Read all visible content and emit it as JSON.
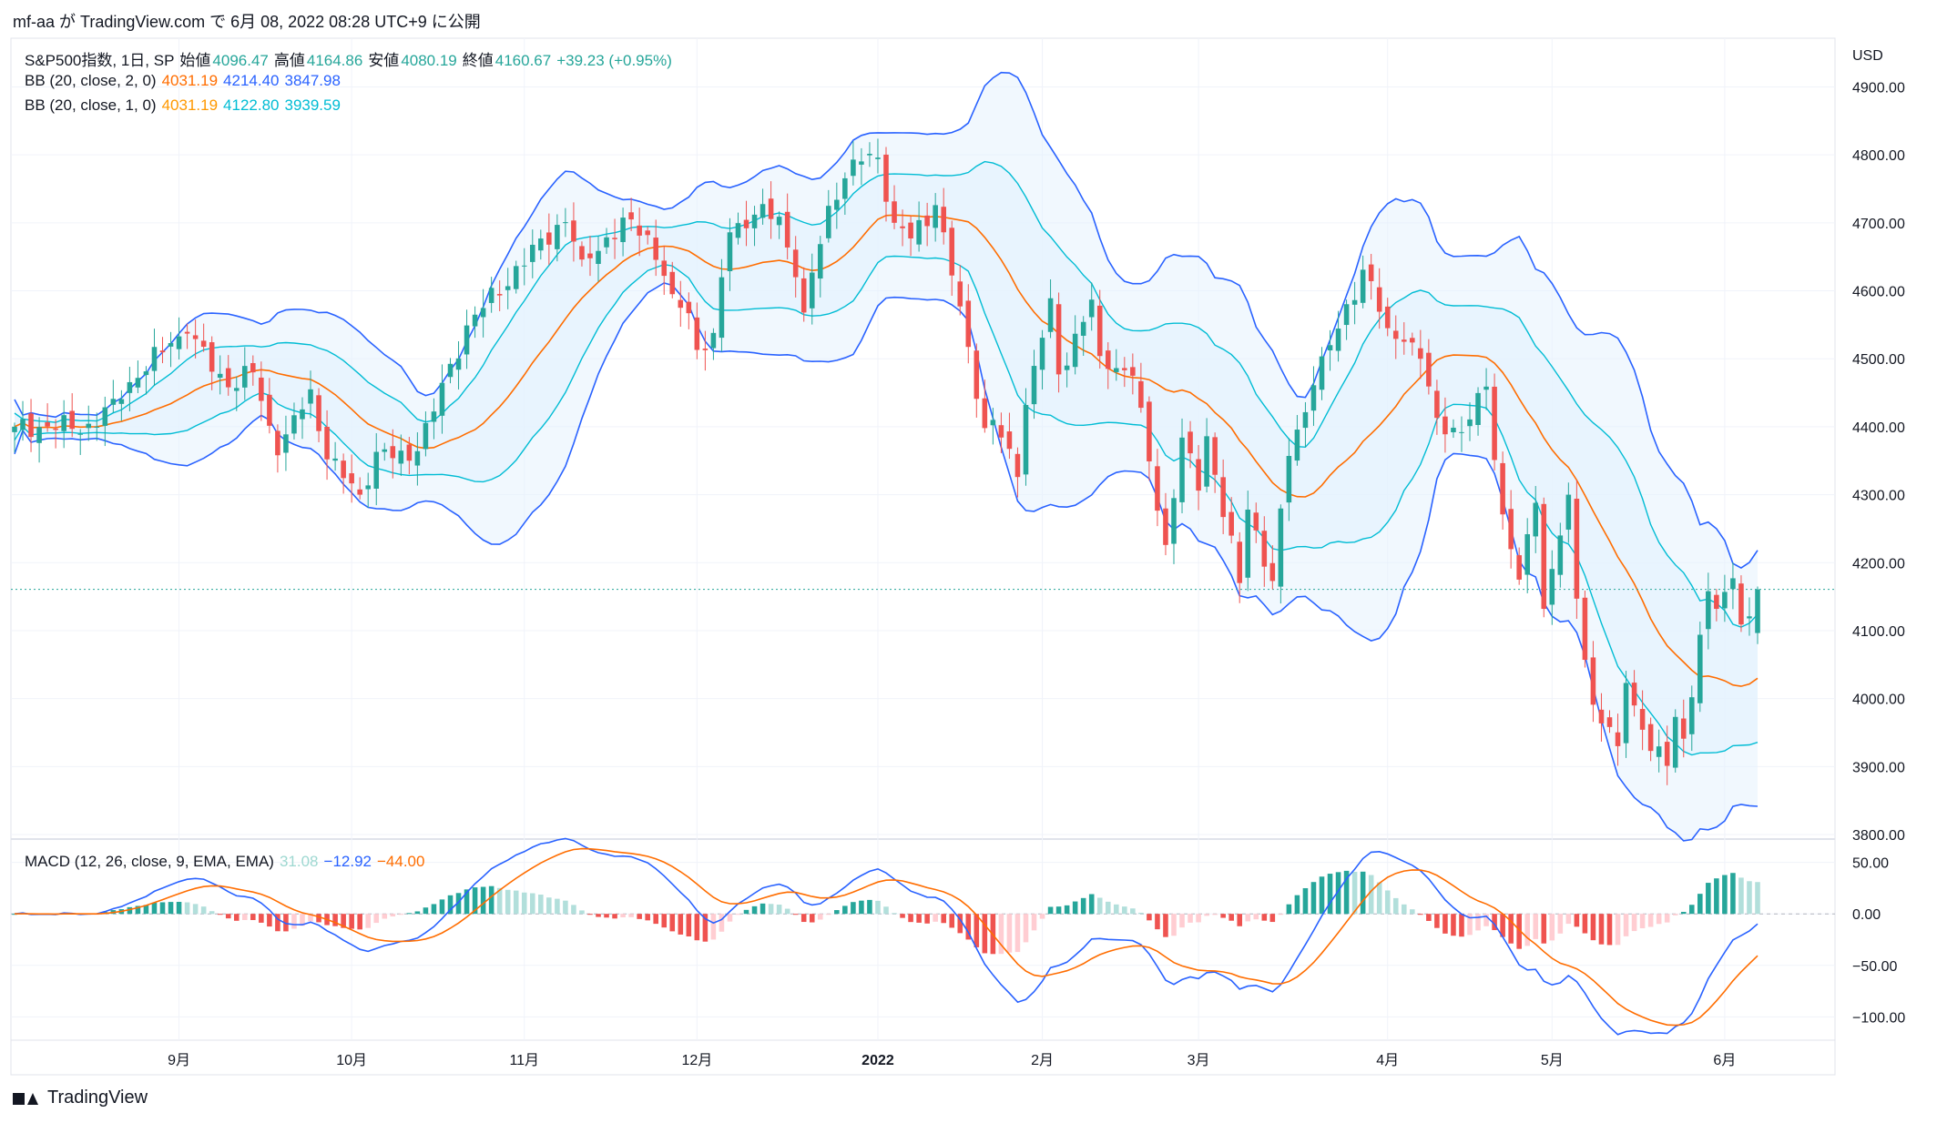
{
  "header": {
    "publisher_line": "mf-aa が TradingView.com で 6月 08, 2022 08:28 UTC+9 に公開"
  },
  "legend": {
    "symbol": "S&P500指数, 1日, SP",
    "open_label": "始値",
    "open": "4096.47",
    "high_label": "高値",
    "high": "4164.86",
    "low_label": "安値",
    "low": "4080.19",
    "close_label": "終値",
    "close": "4160.67",
    "change": "+39.23 (+0.95%)",
    "bb2": {
      "label": "BB (20, close, 2, 0)",
      "basis": "4031.19",
      "upper": "4214.40",
      "lower": "3847.98"
    },
    "bb1": {
      "label": "BB (20, close, 1, 0)",
      "basis": "4031.19",
      "upper": "4122.80",
      "lower": "3939.59"
    },
    "macd": {
      "label": "MACD (12, 26, close, 9, EMA, EMA)",
      "hist": "31.08",
      "macd": "−12.92",
      "signal": "−44.00"
    }
  },
  "currency": "USD",
  "footer": {
    "brand": "TradingView"
  },
  "colors": {
    "up": "#26a69a",
    "down": "#ef5350",
    "bb_outer": "#2962ff",
    "bb_inner": "#00bcd4",
    "basis": "#ff6d00",
    "macd_line": "#2962ff",
    "signal_line": "#ff6d00",
    "hist_up_strong": "#26a69a",
    "hist_up_weak": "#b2dfdb",
    "hist_down_strong": "#ef5350",
    "hist_down_weak": "#ffcdd2",
    "band_fill": "#e3f2fd",
    "grid": "#f0f3fa"
  },
  "chart_data": [
    {
      "type": "candlestick",
      "title": "S&P500指数, 1日, SP",
      "y_axis": {
        "unit": "USD",
        "ticks": [
          3800,
          3900,
          4000,
          4100,
          4200,
          4300,
          4400,
          4500,
          4600,
          4700,
          4800,
          4900
        ],
        "tick_labels": [
          "3800.00",
          "3900.00",
          "4000.00",
          "4100.00",
          "4200.00",
          "4300.00",
          "4400.00",
          "4500.00",
          "4600.00",
          "4700.00",
          "4800.00",
          "4900.00"
        ],
        "range": [
          3800,
          4910
        ]
      },
      "x_axis": {
        "start": "2021-08-04",
        "end": "2022-06-07",
        "tick_labels": [
          {
            "date": "2021-09-01",
            "label": "9月"
          },
          {
            "date": "2021-10-01",
            "label": "10月"
          },
          {
            "date": "2021-11-01",
            "label": "11月"
          },
          {
            "date": "2021-12-01",
            "label": "12月"
          },
          {
            "date": "2022-01-03",
            "label": "2022",
            "bold": true
          },
          {
            "date": "2022-02-01",
            "label": "2月"
          },
          {
            "date": "2022-03-01",
            "label": "3月"
          },
          {
            "date": "2022-04-01",
            "label": "4月"
          },
          {
            "date": "2022-05-02",
            "label": "5月"
          },
          {
            "date": "2022-06-01",
            "label": "6月"
          }
        ]
      },
      "last_price": 4160.67,
      "close_anchors": [
        [
          "2021-08-04",
          4400
        ],
        [
          "2021-08-18",
          4400
        ],
        [
          "2021-08-20",
          4441
        ],
        [
          "2021-08-31",
          4523
        ],
        [
          "2021-09-02",
          4537
        ],
        [
          "2021-09-10",
          4458
        ],
        [
          "2021-09-15",
          4480
        ],
        [
          "2021-09-20",
          4358
        ],
        [
          "2021-09-24",
          4455
        ],
        [
          "2021-09-28",
          4352
        ],
        [
          "2021-10-04",
          4300
        ],
        [
          "2021-10-06",
          4363
        ],
        [
          "2021-10-12",
          4350
        ],
        [
          "2021-10-13",
          4364
        ],
        [
          "2021-10-21",
          4549
        ],
        [
          "2021-11-05",
          4697
        ],
        [
          "2021-11-08",
          4701
        ],
        [
          "2021-11-10",
          4646
        ],
        [
          "2021-11-18",
          4705
        ],
        [
          "2021-11-22",
          4682
        ],
        [
          "2021-11-26",
          4595
        ],
        [
          "2021-11-30",
          4567
        ],
        [
          "2021-12-01",
          4513
        ],
        [
          "2021-12-03",
          4538
        ],
        [
          "2021-12-07",
          4686
        ],
        [
          "2021-12-10",
          4712
        ],
        [
          "2021-12-15",
          4709
        ],
        [
          "2021-12-17",
          4620
        ],
        [
          "2021-12-20",
          4568
        ],
        [
          "2021-12-23",
          4725
        ],
        [
          "2021-12-29",
          4793
        ],
        [
          "2022-01-03",
          4796
        ],
        [
          "2022-01-05",
          4700
        ],
        [
          "2022-01-07",
          4677
        ],
        [
          "2022-01-12",
          4726
        ],
        [
          "2022-01-18",
          4577
        ],
        [
          "2022-01-21",
          4398
        ],
        [
          "2022-01-24",
          4410
        ],
        [
          "2022-01-27",
          4326
        ],
        [
          "2022-01-28",
          4432
        ],
        [
          "2022-02-02",
          4589
        ],
        [
          "2022-02-03",
          4477
        ],
        [
          "2022-02-09",
          4587
        ],
        [
          "2022-02-10",
          4504
        ],
        [
          "2022-02-16",
          4475
        ],
        [
          "2022-02-18",
          4349
        ],
        [
          "2022-02-23",
          4226
        ],
        [
          "2022-02-25",
          4384
        ],
        [
          "2022-03-01",
          4306
        ],
        [
          "2022-03-02",
          4386
        ],
        [
          "2022-03-08",
          4170
        ],
        [
          "2022-03-09",
          4278
        ],
        [
          "2022-03-14",
          4173
        ],
        [
          "2022-03-16",
          4357
        ],
        [
          "2022-03-21",
          4461
        ],
        [
          "2022-03-29",
          4631
        ],
        [
          "2022-04-01",
          4545
        ],
        [
          "2022-04-05",
          4525
        ],
        [
          "2022-04-07",
          4500
        ],
        [
          "2022-04-11",
          4413
        ],
        [
          "2022-04-14",
          4392
        ],
        [
          "2022-04-20",
          4459
        ],
        [
          "2022-04-22",
          4271
        ],
        [
          "2022-04-26",
          4175
        ],
        [
          "2022-04-28",
          4288
        ],
        [
          "2022-04-29",
          4132
        ],
        [
          "2022-05-04",
          4300
        ],
        [
          "2022-05-05",
          4147
        ],
        [
          "2022-05-09",
          3991
        ],
        [
          "2022-05-12",
          3930
        ],
        [
          "2022-05-13",
          4023
        ],
        [
          "2022-05-18",
          3923
        ],
        [
          "2022-05-20",
          3901
        ],
        [
          "2022-05-23",
          3973
        ],
        [
          "2022-05-24",
          3941
        ],
        [
          "2022-05-27",
          4158
        ],
        [
          "2022-05-31",
          4132
        ],
        [
          "2022-06-02",
          4177
        ],
        [
          "2022-06-03",
          4109
        ],
        [
          "2022-06-06",
          4121
        ],
        [
          "2022-06-07",
          4160.67
        ]
      ],
      "last_candle": {
        "open": 4096.47,
        "high": 4164.86,
        "low": 4080.19,
        "close": 4160.67
      },
      "bollinger_bands": [
        {
          "label": "BB (20, close, 2, 0)",
          "basis": 4031.19,
          "upper": 4214.4,
          "lower": 3847.98
        },
        {
          "label": "BB (20, close, 1, 0)",
          "basis": 4031.19,
          "upper": 4122.8,
          "lower": 3939.59
        }
      ]
    },
    {
      "type": "macd",
      "title": "MACD (12, 26, close, 9, EMA, EMA)",
      "y_axis": {
        "ticks": [
          50,
          0,
          -50,
          -100
        ],
        "tick_labels": [
          "50.00",
          "0.00",
          "−50.00",
          "−100.00"
        ],
        "range": [
          -120,
          70
        ]
      },
      "last": {
        "histogram": 31.08,
        "macd": -12.92,
        "signal": -44.0
      }
    }
  ]
}
